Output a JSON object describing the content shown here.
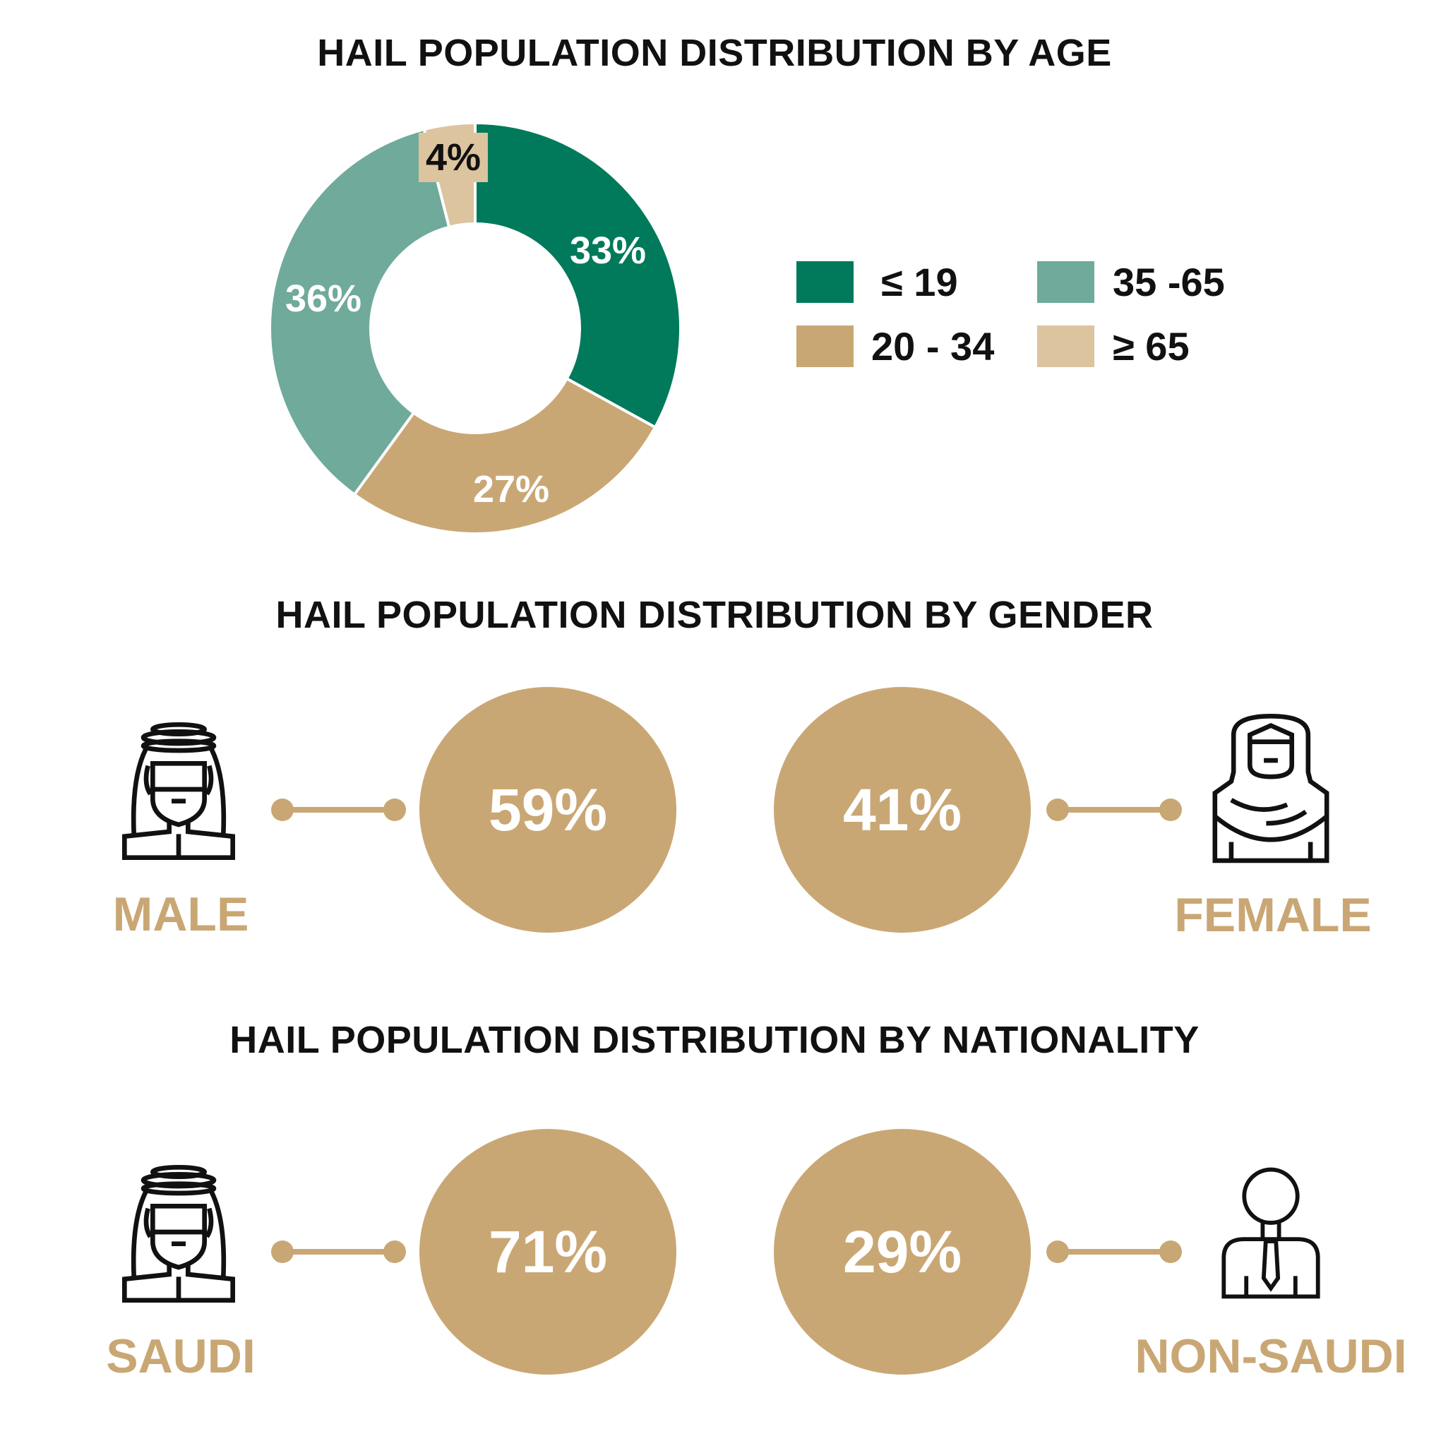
{
  "chart_data": [
    {
      "type": "pie",
      "title": "HAIL POPULATION DISTRIBUTION BY AGE",
      "categories": [
        "≤ 19",
        "20 - 34",
        "35 -65",
        "≥ 65"
      ],
      "values": [
        33,
        27,
        36,
        4
      ],
      "labels": [
        "33%",
        "27%",
        "36%",
        "4%"
      ],
      "colors": [
        "#007A5A",
        "#C9A774",
        "#6FAA9B",
        "#DCC49F"
      ],
      "legend": {
        "placement": "right",
        "entries": [
          "≤ 19",
          "35 -65",
          "20 - 34",
          "≥ 65"
        ]
      }
    },
    {
      "type": "table",
      "title": "HAIL POPULATION DISTRIBUTION BY GENDER",
      "categories": [
        "MALE",
        "FEMALE"
      ],
      "values": [
        59,
        41
      ],
      "labels": [
        "59%",
        "41%"
      ]
    },
    {
      "type": "table",
      "title": "HAIL POPULATION DISTRIBUTION BY NATIONALITY",
      "categories": [
        "SAUDI",
        "NON-SAUDI"
      ],
      "values": [
        71,
        29
      ],
      "labels": [
        "71%",
        "29%"
      ]
    }
  ],
  "icons": {
    "male": "saudi-man-icon",
    "female": "hijab-woman-icon",
    "saudi": "saudi-man-icon",
    "non_saudi": "businessman-icon"
  },
  "colors": {
    "accent": "#C9A774"
  }
}
